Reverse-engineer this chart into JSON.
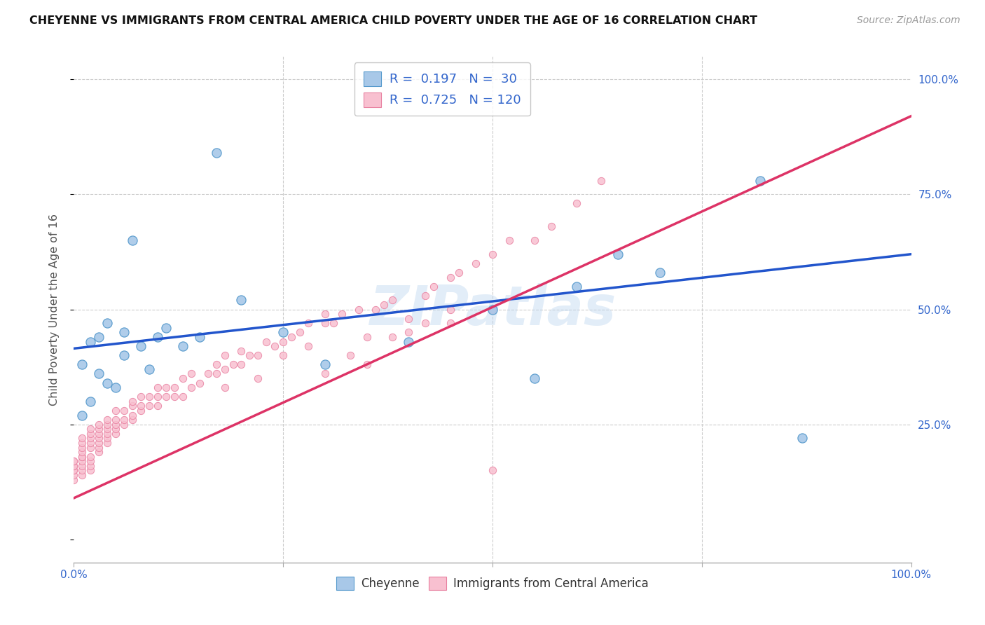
{
  "title": "CHEYENNE VS IMMIGRANTS FROM CENTRAL AMERICA CHILD POVERTY UNDER THE AGE OF 16 CORRELATION CHART",
  "source": "Source: ZipAtlas.com",
  "ylabel": "Child Poverty Under the Age of 16",
  "xlabel": "",
  "background_color": "#ffffff",
  "watermark": "ZIPatlas",
  "cheyenne_color": "#a8c8e8",
  "cheyenne_edge": "#5599cc",
  "immigrant_color": "#f8c0d0",
  "immigrant_edge": "#e880a0",
  "blue_line_color": "#2255cc",
  "pink_line_color": "#dd3366",
  "R_cheyenne": 0.197,
  "N_cheyenne": 30,
  "R_immigrant": 0.725,
  "N_immigrant": 120,
  "blue_line_x0": 0.0,
  "blue_line_y0": 0.415,
  "blue_line_x1": 1.0,
  "blue_line_y1": 0.62,
  "pink_line_x0": 0.0,
  "pink_line_y0": 0.09,
  "pink_line_x1": 1.0,
  "pink_line_y1": 0.92,
  "cheyenne_x": [
    0.01,
    0.01,
    0.02,
    0.02,
    0.03,
    0.03,
    0.04,
    0.04,
    0.05,
    0.06,
    0.06,
    0.07,
    0.08,
    0.09,
    0.1,
    0.11,
    0.13,
    0.15,
    0.17,
    0.2,
    0.25,
    0.3,
    0.4,
    0.5,
    0.55,
    0.6,
    0.65,
    0.7,
    0.82,
    0.87
  ],
  "cheyenne_y": [
    0.27,
    0.38,
    0.3,
    0.43,
    0.36,
    0.44,
    0.34,
    0.47,
    0.33,
    0.45,
    0.4,
    0.65,
    0.42,
    0.37,
    0.44,
    0.46,
    0.42,
    0.44,
    0.84,
    0.52,
    0.45,
    0.38,
    0.43,
    0.5,
    0.35,
    0.55,
    0.62,
    0.58,
    0.78,
    0.22
  ],
  "immigrant_x": [
    0.0,
    0.0,
    0.0,
    0.0,
    0.0,
    0.0,
    0.0,
    0.0,
    0.01,
    0.01,
    0.01,
    0.01,
    0.01,
    0.01,
    0.01,
    0.01,
    0.01,
    0.01,
    0.02,
    0.02,
    0.02,
    0.02,
    0.02,
    0.02,
    0.02,
    0.02,
    0.02,
    0.03,
    0.03,
    0.03,
    0.03,
    0.03,
    0.03,
    0.03,
    0.04,
    0.04,
    0.04,
    0.04,
    0.04,
    0.04,
    0.05,
    0.05,
    0.05,
    0.05,
    0.05,
    0.06,
    0.06,
    0.06,
    0.07,
    0.07,
    0.07,
    0.07,
    0.08,
    0.08,
    0.08,
    0.09,
    0.09,
    0.1,
    0.1,
    0.1,
    0.11,
    0.11,
    0.12,
    0.12,
    0.13,
    0.13,
    0.14,
    0.14,
    0.15,
    0.16,
    0.17,
    0.17,
    0.18,
    0.18,
    0.19,
    0.2,
    0.2,
    0.21,
    0.22,
    0.23,
    0.24,
    0.25,
    0.26,
    0.27,
    0.28,
    0.3,
    0.3,
    0.31,
    0.32,
    0.34,
    0.35,
    0.36,
    0.37,
    0.38,
    0.4,
    0.42,
    0.43,
    0.45,
    0.46,
    0.48,
    0.5,
    0.52,
    0.55,
    0.57,
    0.6,
    0.63,
    0.3,
    0.35,
    0.4,
    0.45,
    0.5,
    0.18,
    0.22,
    0.25,
    0.28,
    0.33,
    0.38,
    0.42,
    0.45,
    0.5
  ],
  "immigrant_y": [
    0.13,
    0.14,
    0.15,
    0.15,
    0.16,
    0.16,
    0.17,
    0.17,
    0.14,
    0.15,
    0.16,
    0.17,
    0.18,
    0.18,
    0.19,
    0.2,
    0.21,
    0.22,
    0.15,
    0.16,
    0.17,
    0.18,
    0.2,
    0.21,
    0.22,
    0.23,
    0.24,
    0.19,
    0.2,
    0.21,
    0.22,
    0.23,
    0.24,
    0.25,
    0.21,
    0.22,
    0.23,
    0.24,
    0.25,
    0.26,
    0.23,
    0.24,
    0.25,
    0.26,
    0.28,
    0.25,
    0.26,
    0.28,
    0.26,
    0.27,
    0.29,
    0.3,
    0.28,
    0.29,
    0.31,
    0.29,
    0.31,
    0.29,
    0.31,
    0.33,
    0.31,
    0.33,
    0.31,
    0.33,
    0.31,
    0.35,
    0.33,
    0.36,
    0.34,
    0.36,
    0.36,
    0.38,
    0.37,
    0.4,
    0.38,
    0.38,
    0.41,
    0.4,
    0.4,
    0.43,
    0.42,
    0.43,
    0.44,
    0.45,
    0.47,
    0.47,
    0.49,
    0.47,
    0.49,
    0.5,
    0.44,
    0.5,
    0.51,
    0.52,
    0.48,
    0.53,
    0.55,
    0.57,
    0.58,
    0.6,
    0.62,
    0.65,
    0.65,
    0.68,
    0.73,
    0.78,
    0.36,
    0.38,
    0.45,
    0.47,
    0.5,
    0.33,
    0.35,
    0.4,
    0.42,
    0.4,
    0.44,
    0.47,
    0.5,
    0.15
  ],
  "xlim": [
    0.0,
    1.0
  ],
  "ylim": [
    -0.05,
    1.05
  ],
  "legend_label_1": "Cheyenne",
  "legend_label_2": "Immigrants from Central America",
  "title_color": "#111111",
  "axis_label_color": "#555555",
  "tick_color": "#3366cc",
  "grid_color": "#cccccc",
  "legend_R_N_color": "#3366cc"
}
